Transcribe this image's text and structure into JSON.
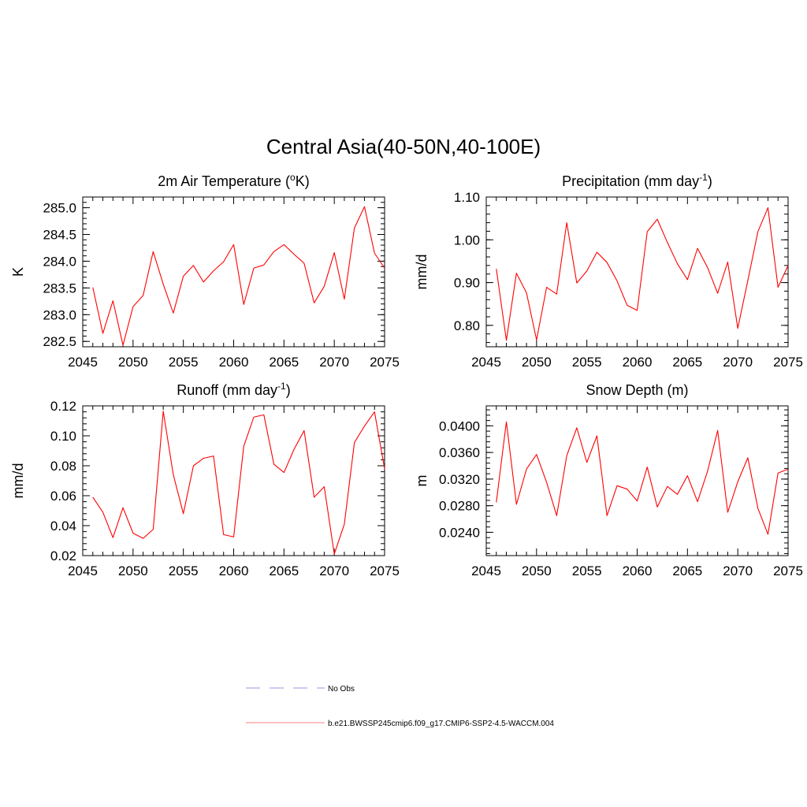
{
  "figure": {
    "title": "Central Asia(40-50N,40-100E)"
  },
  "chart_data": [
    {
      "type": "line",
      "title": "2m Air Temperature (",
      "title_sup": "o",
      "title_end": "K)",
      "xlabel": "",
      "ylabel": "K",
      "xlim": [
        2045,
        2075
      ],
      "ylim": [
        282.4,
        285.2
      ],
      "xticks": [
        2045,
        2050,
        2055,
        2060,
        2065,
        2070,
        2075
      ],
      "yticks": [
        282.5,
        283.0,
        283.5,
        284.0,
        284.5,
        285.0
      ],
      "ytick_labels": [
        "282.5",
        "283.0",
        "283.5",
        "284.0",
        "284.5",
        "285.0"
      ],
      "y_minor_step": 0.1,
      "x": [
        2046,
        2047,
        2048,
        2049,
        2050,
        2051,
        2052,
        2053,
        2054,
        2055,
        2056,
        2057,
        2058,
        2059,
        2060,
        2061,
        2062,
        2063,
        2064,
        2065,
        2066,
        2067,
        2068,
        2069,
        2070,
        2071,
        2072,
        2073,
        2074,
        2075
      ],
      "series": [
        {
          "color": "#ff0000",
          "values": [
            283.51,
            282.65,
            283.26,
            282.43,
            283.15,
            283.36,
            284.18,
            283.57,
            283.03,
            283.72,
            283.92,
            283.61,
            283.82,
            283.99,
            284.31,
            283.19,
            283.87,
            283.93,
            284.18,
            284.31,
            284.13,
            283.96,
            283.22,
            283.53,
            284.16,
            283.29,
            284.62,
            285.02,
            284.15,
            283.87
          ]
        }
      ]
    },
    {
      "type": "line",
      "title": "Precipitation (mm day",
      "title_sup": "-1",
      "title_end": ")",
      "xlabel": "",
      "ylabel": "mm/d",
      "xlim": [
        2045,
        2075
      ],
      "ylim": [
        0.75,
        1.1
      ],
      "xticks": [
        2045,
        2050,
        2055,
        2060,
        2065,
        2070,
        2075
      ],
      "yticks": [
        0.8,
        0.9,
        1.0,
        1.1
      ],
      "ytick_labels": [
        "0.80",
        "0.90",
        "1.00",
        "1.10"
      ],
      "y_minor_step": 0.02,
      "x": [
        2046,
        2047,
        2048,
        2049,
        2050,
        2051,
        2052,
        2053,
        2054,
        2055,
        2056,
        2057,
        2058,
        2059,
        2060,
        2061,
        2062,
        2063,
        2064,
        2065,
        2066,
        2067,
        2068,
        2069,
        2070,
        2071,
        2072,
        2073,
        2074,
        2075
      ],
      "series": [
        {
          "color": "#ff0000",
          "values": [
            0.932,
            0.765,
            0.922,
            0.876,
            0.766,
            0.889,
            0.873,
            1.04,
            0.899,
            0.927,
            0.971,
            0.947,
            0.904,
            0.847,
            0.835,
            1.019,
            1.048,
            0.994,
            0.944,
            0.907,
            0.98,
            0.935,
            0.875,
            0.948,
            0.793,
            0.905,
            1.019,
            1.075,
            0.889,
            0.94
          ]
        }
      ]
    },
    {
      "type": "line",
      "title": "Runoff (mm day",
      "title_sup": "-1",
      "title_end": ")",
      "xlabel": "",
      "ylabel": "mm/d",
      "xlim": [
        2045,
        2075
      ],
      "ylim": [
        0.02,
        0.12
      ],
      "xticks": [
        2045,
        2050,
        2055,
        2060,
        2065,
        2070,
        2075
      ],
      "yticks": [
        0.02,
        0.04,
        0.06,
        0.08,
        0.1,
        0.12
      ],
      "ytick_labels": [
        "0.02",
        "0.04",
        "0.06",
        "0.08",
        "0.10",
        "0.12"
      ],
      "y_minor_step": 0.004,
      "x": [
        2046,
        2047,
        2048,
        2049,
        2050,
        2051,
        2052,
        2053,
        2054,
        2055,
        2056,
        2057,
        2058,
        2059,
        2060,
        2061,
        2062,
        2063,
        2064,
        2065,
        2066,
        2067,
        2068,
        2069,
        2070,
        2071,
        2072,
        2073,
        2074,
        2075
      ],
      "series": [
        {
          "color": "#ff0000",
          "values": [
            0.059,
            0.049,
            0.032,
            0.052,
            0.035,
            0.0315,
            0.0375,
            0.1165,
            0.074,
            0.048,
            0.08,
            0.085,
            0.0865,
            0.034,
            0.0325,
            0.093,
            0.1125,
            0.114,
            0.081,
            0.0755,
            0.091,
            0.1035,
            0.059,
            0.066,
            0.021,
            0.041,
            0.0955,
            0.1065,
            0.116,
            0.078
          ]
        }
      ]
    },
    {
      "type": "line",
      "title": "Snow Depth (m)",
      "title_sup": "",
      "title_end": "",
      "xlabel": "",
      "ylabel": "m",
      "xlim": [
        2045,
        2075
      ],
      "ylim": [
        0.0205,
        0.043
      ],
      "xticks": [
        2045,
        2050,
        2055,
        2060,
        2065,
        2070,
        2075
      ],
      "yticks": [
        0.024,
        0.028,
        0.032,
        0.036,
        0.04
      ],
      "ytick_labels": [
        "0.0240",
        "0.0280",
        "0.0320",
        "0.0360",
        "0.0400"
      ],
      "y_minor_step": 0.0008,
      "x": [
        2046,
        2047,
        2048,
        2049,
        2050,
        2051,
        2052,
        2053,
        2054,
        2055,
        2056,
        2057,
        2058,
        2059,
        2060,
        2061,
        2062,
        2063,
        2064,
        2065,
        2066,
        2067,
        2068,
        2069,
        2070,
        2071,
        2072,
        2073,
        2074,
        2075
      ],
      "series": [
        {
          "color": "#ff0000",
          "values": [
            0.0285,
            0.0406,
            0.0282,
            0.0335,
            0.0357,
            0.0315,
            0.0265,
            0.0355,
            0.0397,
            0.0345,
            0.0385,
            0.0265,
            0.031,
            0.0305,
            0.0287,
            0.0338,
            0.0278,
            0.0309,
            0.0297,
            0.0325,
            0.0286,
            0.0332,
            0.0393,
            0.027,
            0.0316,
            0.0352,
            0.0276,
            0.0237,
            0.0329,
            0.0335
          ]
        }
      ]
    }
  ],
  "legend": [
    {
      "label": "No Obs",
      "color": "#9999dd",
      "dashed": true
    },
    {
      "label": "b.e21.BWSSP245cmip6.f09_g17.CMIP6-SSP2-4.5-WACCM.004",
      "color": "#ff8080",
      "dashed": false
    }
  ]
}
